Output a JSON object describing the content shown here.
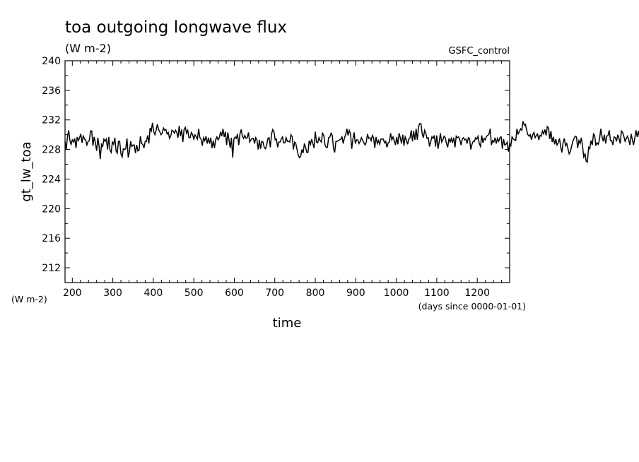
{
  "chart_data": {
    "type": "line",
    "title": "toa outgoing longwave flux",
    "units": "(W m-2)",
    "source_label": "GSFC_control",
    "ylabel": "gt_lw_toa",
    "y_units_label": "(W m-2)",
    "xlabel": "time",
    "x_units_label": "(days since 0000-01-01)",
    "xlim": [
      182,
      1280
    ],
    "ylim": [
      210,
      240
    ],
    "x_ticks": [
      200,
      300,
      400,
      500,
      600,
      700,
      800,
      900,
      1000,
      1100,
      1200
    ],
    "y_ticks": [
      212,
      216,
      220,
      224,
      228,
      232,
      236,
      240
    ],
    "grid": false,
    "line_color": "#000000",
    "series": [
      {
        "name": "",
        "x_start": 182,
        "x_step": 3,
        "values": [
          229.1,
          228.0,
          229.7,
          230.6,
          229.2,
          228.7,
          229.3,
          229.0,
          229.5,
          228.2,
          229.7,
          229.2,
          229.6,
          230.1,
          228.9,
          229.9,
          229.4,
          229.3,
          228.6,
          229.1,
          229.2,
          230.5,
          230.5,
          228.5,
          229.7,
          228.9,
          227.8,
          229.6,
          228.5,
          226.7,
          228.7,
          228.4,
          229.4,
          229.1,
          229.4,
          228.0,
          229.7,
          227.9,
          227.6,
          229.0,
          228.7,
          229.6,
          227.8,
          227.5,
          229.1,
          229.1,
          227.4,
          227.0,
          228.1,
          228.0,
          228.1,
          229.5,
          226.9,
          227.7,
          229.1,
          228.4,
          228.6,
          228.6,
          227.5,
          228.6,
          227.8,
          227.9,
          229.8,
          228.8,
          228.7,
          228.2,
          229.1,
          229.1,
          229.9,
          228.8,
          230.9,
          230.5,
          231.6,
          230.4,
          230.0,
          230.6,
          231.4,
          230.7,
          230.4,
          230.0,
          230.2,
          230.9,
          230.6,
          230.7,
          230.1,
          230.3,
          229.5,
          229.8,
          230.6,
          230.5,
          230.2,
          230.6,
          230.3,
          229.6,
          231.2,
          229.8,
          230.7,
          229.0,
          230.7,
          231.0,
          230.2,
          230.6,
          229.6,
          229.6,
          230.3,
          230.0,
          229.4,
          230.0,
          229.7,
          229.4,
          230.8,
          229.6,
          229.4,
          228.5,
          229.6,
          229.2,
          229.8,
          228.8,
          229.6,
          228.8,
          229.6,
          228.2,
          229.2,
          228.2,
          229.3,
          229.7,
          229.3,
          229.6,
          230.4,
          229.8,
          230.8,
          229.7,
          230.4,
          228.6,
          230.3,
          229.3,
          228.2,
          229.6,
          226.9,
          229.4,
          229.7,
          229.5,
          230.1,
          228.6,
          230.1,
          230.7,
          229.8,
          229.5,
          229.9,
          229.5,
          229.6,
          230.3,
          229.0,
          229.3,
          229.5,
          229.5,
          228.8,
          229.6,
          229.3,
          228.0,
          229.3,
          228.1,
          229.1,
          229.0,
          228.3,
          228.1,
          228.6,
          229.5,
          229.6,
          228.3,
          230.1,
          230.7,
          230.4,
          229.3,
          229.4,
          228.3,
          229.0,
          229.0,
          229.4,
          229.7,
          228.9,
          228.9,
          229.6,
          229.1,
          229.1,
          229.0,
          230.0,
          229.7,
          228.0,
          229.0,
          228.8,
          228.0,
          227.2,
          226.9,
          227.1,
          228.0,
          227.5,
          228.8,
          228.3,
          227.6,
          227.6,
          229.2,
          228.7,
          229.4,
          228.8,
          228.2,
          230.4,
          229.0,
          228.9,
          229.6,
          229.2,
          229.0,
          230.2,
          229.9,
          228.6,
          228.3,
          228.3,
          229.6,
          229.7,
          230.2,
          229.9,
          228.1,
          227.6,
          229.1,
          229.1,
          229.2,
          229.3,
          229.4,
          229.7,
          228.8,
          229.6,
          230.0,
          230.8,
          229.9,
          230.6,
          230.1,
          228.1,
          229.4,
          230.3,
          228.8,
          229.3,
          229.3,
          228.8,
          229.1,
          229.6,
          229.2,
          228.9,
          228.6,
          229.0,
          230.1,
          229.5,
          229.6,
          229.2,
          229.9,
          229.6,
          228.2,
          229.7,
          228.8,
          229.2,
          228.7,
          229.4,
          229.4,
          229.4,
          228.9,
          229.1,
          228.3,
          228.9,
          229.0,
          230.2,
          229.3,
          229.7,
          229.2,
          228.6,
          229.7,
          228.7,
          230.2,
          229.6,
          228.8,
          230.0,
          228.5,
          229.7,
          229.3,
          228.7,
          229.4,
          229.6,
          230.6,
          229.1,
          230.5,
          229.3,
          230.8,
          229.3,
          231.1,
          231.5,
          231.5,
          230.1,
          229.6,
          230.6,
          230.2,
          229.5,
          229.6,
          228.4,
          229.0,
          229.7,
          229.5,
          229.9,
          228.4,
          229.9,
          228.1,
          229.0,
          230.2,
          229.0,
          229.3,
          229.8,
          229.6,
          228.8,
          228.3,
          229.5,
          229.0,
          229.5,
          228.9,
          229.6,
          228.3,
          229.8,
          229.6,
          229.7,
          229.3,
          228.6,
          229.4,
          229.6,
          229.3,
          229.4,
          228.8,
          229.6,
          229.5,
          228.0,
          228.7,
          229.1,
          229.1,
          229.6,
          229.4,
          229.8,
          228.8,
          228.4,
          229.9,
          228.9,
          229.5,
          229.3,
          229.8,
          229.9,
          230.1,
          230.8,
          228.6,
          229.2,
          229.0,
          229.6,
          228.8,
          229.5,
          229.1,
          229.6,
          229.7,
          228.1,
          229.4,
          228.6,
          228.7,
          229.0,
          227.7,
          228.8,
          228.5,
          229.7,
          229.4,
          229.3,
          229.2,
          230.8,
          230.1,
          230.4,
          230.8,
          230.6,
          231.8,
          231.3,
          231.4,
          230.6,
          230.0,
          229.8,
          230.0,
          229.3,
          230.0,
          230.3,
          229.6,
          229.9,
          230.1,
          229.3,
          229.9,
          229.8,
          230.5,
          230.1,
          230.7,
          229.9,
          231.1,
          230.9,
          229.4,
          230.5,
          229.0,
          229.7,
          228.7,
          229.4,
          228.6,
          228.9,
          229.5,
          228.4,
          227.6,
          228.9,
          229.5,
          228.5,
          228.8,
          228.1,
          227.4,
          227.7,
          228.4,
          229.1,
          229.5,
          229.8,
          229.7,
          228.2,
          229.2,
          228.8,
          229.6,
          228.5,
          227.0,
          227.4,
          226.4,
          226.3,
          228.3,
          228.1,
          229.2,
          228.6,
          230.1,
          229.9,
          228.5,
          228.9,
          228.7,
          229.4,
          230.8,
          229.8,
          229.1,
          230.0,
          228.8,
          229.8,
          229.9,
          230.6,
          229.2,
          229.2,
          228.6,
          229.7,
          229.6,
          229.1,
          230.0,
          229.5,
          228.8,
          230.5,
          230.3,
          229.8,
          229.1,
          229.5,
          229.8,
          229.3,
          228.6,
          230.1,
          229.3,
          228.6,
          229.5,
          230.6,
          229.7,
          230.5,
          229.6,
          230.3,
          229.8,
          228.6,
          229.9,
          228.9,
          229.8,
          230.7,
          229.9,
          228.7,
          229.7
        ]
      }
    ]
  }
}
